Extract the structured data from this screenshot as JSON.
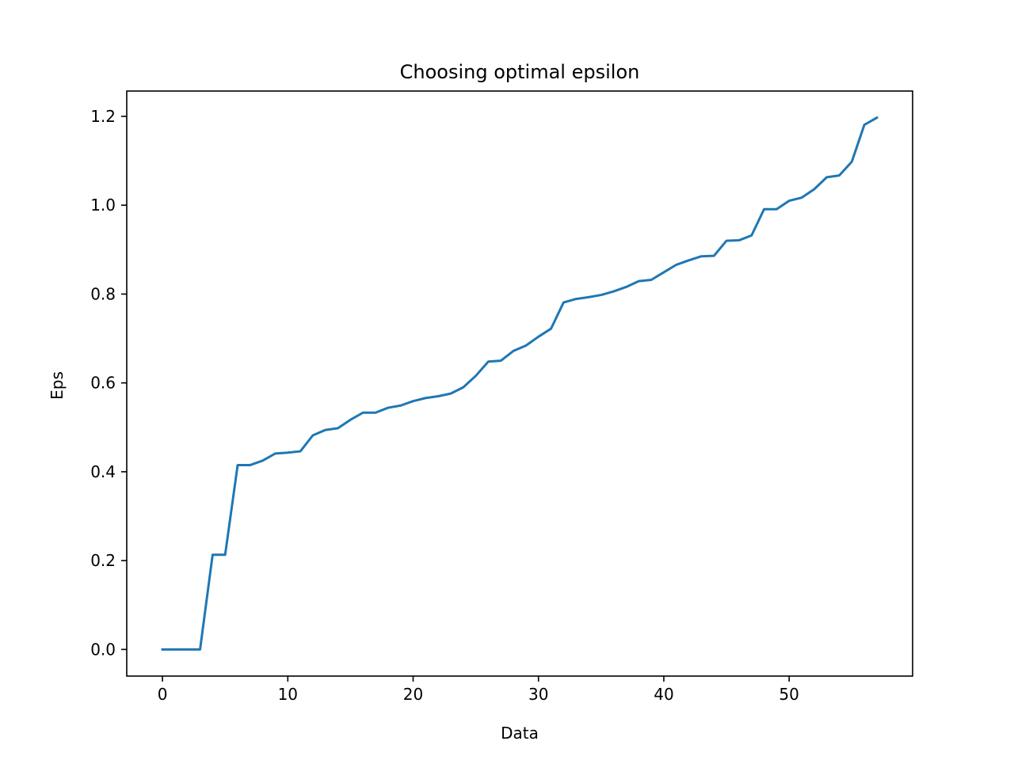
{
  "chart_data": {
    "type": "line",
    "title": "Choosing optimal epsilon",
    "xlabel": "Data",
    "ylabel": "Eps",
    "xlim": [
      -2.85,
      59.85
    ],
    "ylim": [
      -0.06,
      1.257
    ],
    "xticks": [
      0,
      10,
      20,
      30,
      40,
      50
    ],
    "xtick_labels": [
      "0",
      "10",
      "20",
      "30",
      "40",
      "50"
    ],
    "yticks": [
      0.0,
      0.2,
      0.4,
      0.6,
      0.8,
      1.0,
      1.2
    ],
    "ytick_labels": [
      "0.0",
      "0.2",
      "0.4",
      "0.6",
      "0.8",
      "1.0",
      "1.2"
    ],
    "grid": false,
    "legend": "none",
    "series": [
      {
        "color": "#1f77b4",
        "x": [
          0,
          1,
          2,
          3,
          4,
          5,
          6,
          7,
          8,
          9,
          10,
          11,
          12,
          13,
          14,
          15,
          16,
          17,
          18,
          19,
          20,
          21,
          22,
          23,
          24,
          25,
          26,
          27,
          28,
          29,
          30,
          31,
          32,
          33,
          34,
          35,
          36,
          37,
          38,
          39,
          40,
          41,
          42,
          43,
          44,
          45,
          46,
          47,
          48,
          49,
          50,
          51,
          52,
          53,
          54,
          55,
          56,
          57
        ],
        "values": [
          0.0,
          0.0,
          0.0,
          0.0,
          0.213,
          0.213,
          0.415,
          0.415,
          0.425,
          0.441,
          0.443,
          0.446,
          0.482,
          0.494,
          0.498,
          0.517,
          0.533,
          0.533,
          0.544,
          0.549,
          0.559,
          0.566,
          0.57,
          0.576,
          0.59,
          0.616,
          0.648,
          0.65,
          0.672,
          0.684,
          0.704,
          0.722,
          0.781,
          0.789,
          0.793,
          0.798,
          0.806,
          0.816,
          0.829,
          0.832,
          0.849,
          0.866,
          0.876,
          0.885,
          0.886,
          0.92,
          0.921,
          0.932,
          0.991,
          0.991,
          1.01,
          1.017,
          1.036,
          1.063,
          1.067,
          1.098,
          1.181,
          1.197
        ]
      }
    ]
  }
}
